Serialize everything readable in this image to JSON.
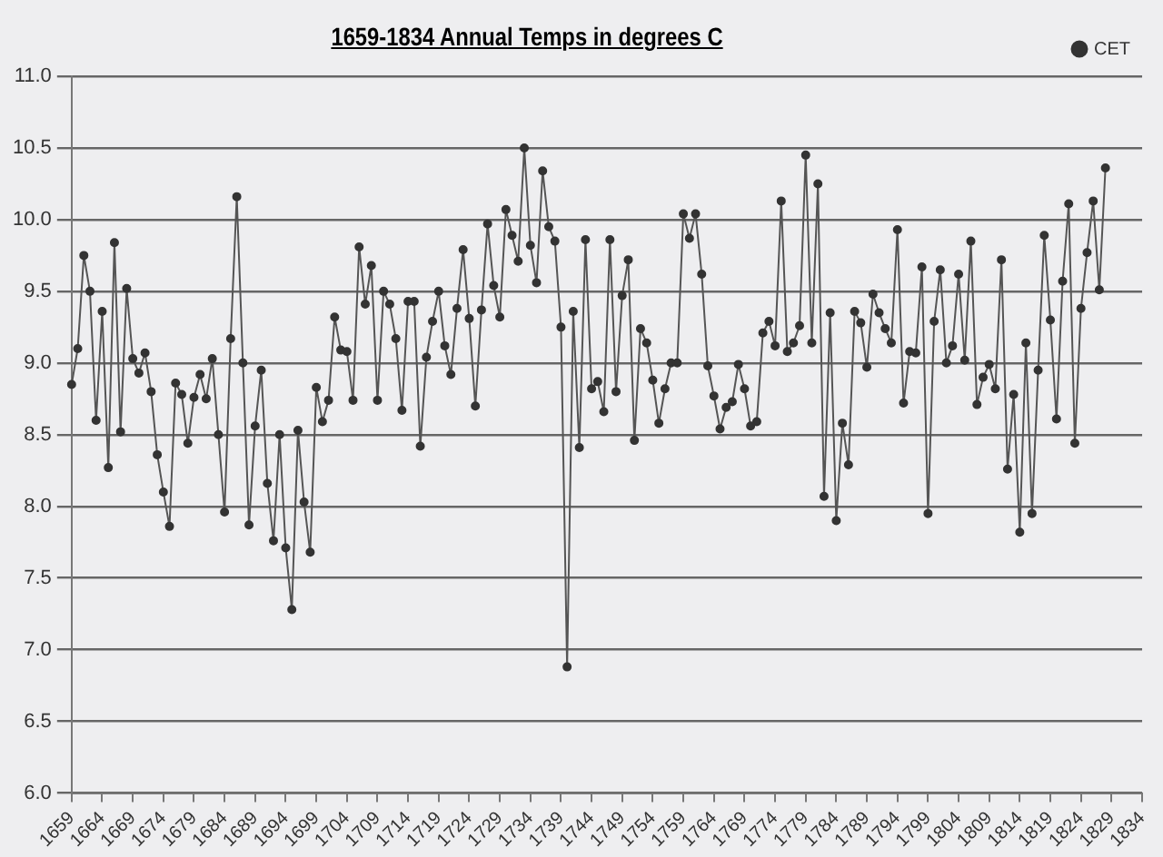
{
  "chart_data": {
    "type": "line",
    "title": "1659-1834 Annual Temps in degrees C",
    "categories": [
      "1659",
      null,
      null,
      null,
      null,
      "1664",
      null,
      null,
      null,
      null,
      "1669",
      null,
      null,
      null,
      null,
      "1674",
      null,
      null,
      null,
      null,
      "1679",
      null,
      null,
      null,
      null,
      "1684",
      null,
      null,
      null,
      null,
      "1689",
      null,
      null,
      null,
      null,
      "1694",
      null,
      null,
      null,
      null,
      "1699",
      null,
      null,
      null,
      null,
      "1704",
      null,
      null,
      null,
      null,
      "1709",
      null,
      null,
      null,
      null,
      "1714",
      null,
      null,
      null,
      null,
      "1719",
      null,
      null,
      null,
      null,
      "1724",
      null,
      null,
      null,
      null,
      "1729",
      null,
      null,
      null,
      null,
      "1734",
      null,
      null,
      null,
      null,
      "1739",
      null,
      null,
      null,
      null,
      "1744",
      null,
      null,
      null,
      null,
      "1749",
      null,
      null,
      null,
      null,
      "1754",
      null,
      null,
      null,
      null,
      "1759",
      null,
      null,
      null,
      null,
      "1764",
      null,
      null,
      null,
      null,
      "1769",
      null,
      null,
      null,
      null,
      "1774",
      null,
      null,
      null,
      null,
      "1779",
      null,
      null,
      null,
      null,
      "1784",
      null,
      null,
      null,
      null,
      "1789",
      null,
      null,
      null,
      null,
      "1794",
      null,
      null,
      null,
      null,
      "1799",
      null,
      null,
      null,
      null,
      "1804",
      null,
      null,
      null,
      null,
      "1809",
      null,
      null,
      null,
      null,
      "1814",
      null,
      null,
      null,
      null,
      "1819",
      null,
      null,
      null,
      null,
      "1824",
      null,
      null,
      null,
      null,
      "1829",
      null,
      null,
      null,
      null,
      "1834"
    ],
    "series": [
      {
        "name": "CET",
        "color": "#555555",
        "values": [
          8.85,
          9.1,
          9.75,
          9.5,
          8.6,
          9.36,
          8.27,
          9.84,
          8.52,
          9.52,
          9.03,
          8.93,
          9.07,
          8.8,
          8.36,
          8.1,
          7.86,
          8.86,
          8.78,
          8.44,
          8.76,
          8.92,
          8.75,
          9.03,
          8.5,
          7.96,
          9.17,
          10.16,
          9.0,
          7.87,
          8.56,
          8.95,
          8.16,
          7.76,
          8.5,
          7.71,
          7.28,
          8.53,
          8.03,
          7.68,
          8.83,
          8.59,
          8.74,
          9.32,
          9.09,
          9.08,
          8.74,
          9.81,
          9.41,
          9.68,
          8.74,
          9.5,
          9.41,
          9.17,
          8.67,
          9.43,
          9.43,
          8.42,
          9.04,
          9.29,
          9.5,
          9.12,
          8.92,
          9.38,
          9.79,
          9.31,
          8.7,
          9.37,
          9.97,
          9.54,
          9.32,
          10.07,
          9.89,
          9.71,
          10.5,
          9.82,
          9.56,
          10.34,
          9.95,
          9.85,
          9.25,
          6.88,
          9.36,
          8.41,
          9.86,
          8.82,
          8.87,
          8.66,
          9.86,
          8.8,
          9.47,
          9.72,
          8.46,
          9.24,
          9.14,
          8.88,
          8.58,
          8.82,
          9.0,
          9.0,
          10.04,
          9.87,
          10.04,
          9.62,
          8.98,
          8.77,
          8.54,
          8.69,
          8.73,
          8.99,
          8.82,
          8.56,
          8.59,
          9.21,
          9.29,
          9.12,
          10.13,
          9.08,
          9.14,
          9.26,
          10.45,
          9.14,
          10.25,
          8.07,
          9.35,
          7.9,
          8.58,
          8.29,
          9.36,
          9.28,
          8.97,
          9.48,
          9.35,
          9.24,
          9.14,
          9.93,
          8.72,
          9.08,
          9.07,
          9.67,
          7.95,
          9.29,
          9.65,
          9.0,
          9.12,
          9.62,
          9.02,
          9.85,
          8.71,
          8.9,
          8.99,
          8.82,
          9.72,
          8.26,
          8.78,
          7.82,
          9.14,
          7.95,
          8.95,
          9.89,
          9.3,
          8.61,
          9.57,
          10.11,
          8.44,
          9.38,
          9.77,
          10.13,
          9.51,
          10.36,
          null,
          null,
          null,
          null,
          null,
          null
        ]
      }
    ],
    "ylim": [
      6,
      11
    ],
    "yticks": [
      {
        "value": 6,
        "label": "6.0"
      },
      {
        "value": 6.5,
        "label": "6.5"
      },
      {
        "value": 7,
        "label": "7.0"
      },
      {
        "value": 7.5,
        "label": "7.5"
      },
      {
        "value": 8,
        "label": "8.0"
      },
      {
        "value": 8.5,
        "label": "8.5"
      },
      {
        "value": 9,
        "label": "9.0"
      },
      {
        "value": 9.5,
        "label": "9.5"
      },
      {
        "value": 10,
        "label": "10.0"
      },
      {
        "value": 10.5,
        "label": "10.5"
      },
      {
        "value": 11,
        "label": "11.0"
      }
    ],
    "grid": "y",
    "legend": "top right",
    "marker": "circle",
    "line_style": "solid"
  }
}
